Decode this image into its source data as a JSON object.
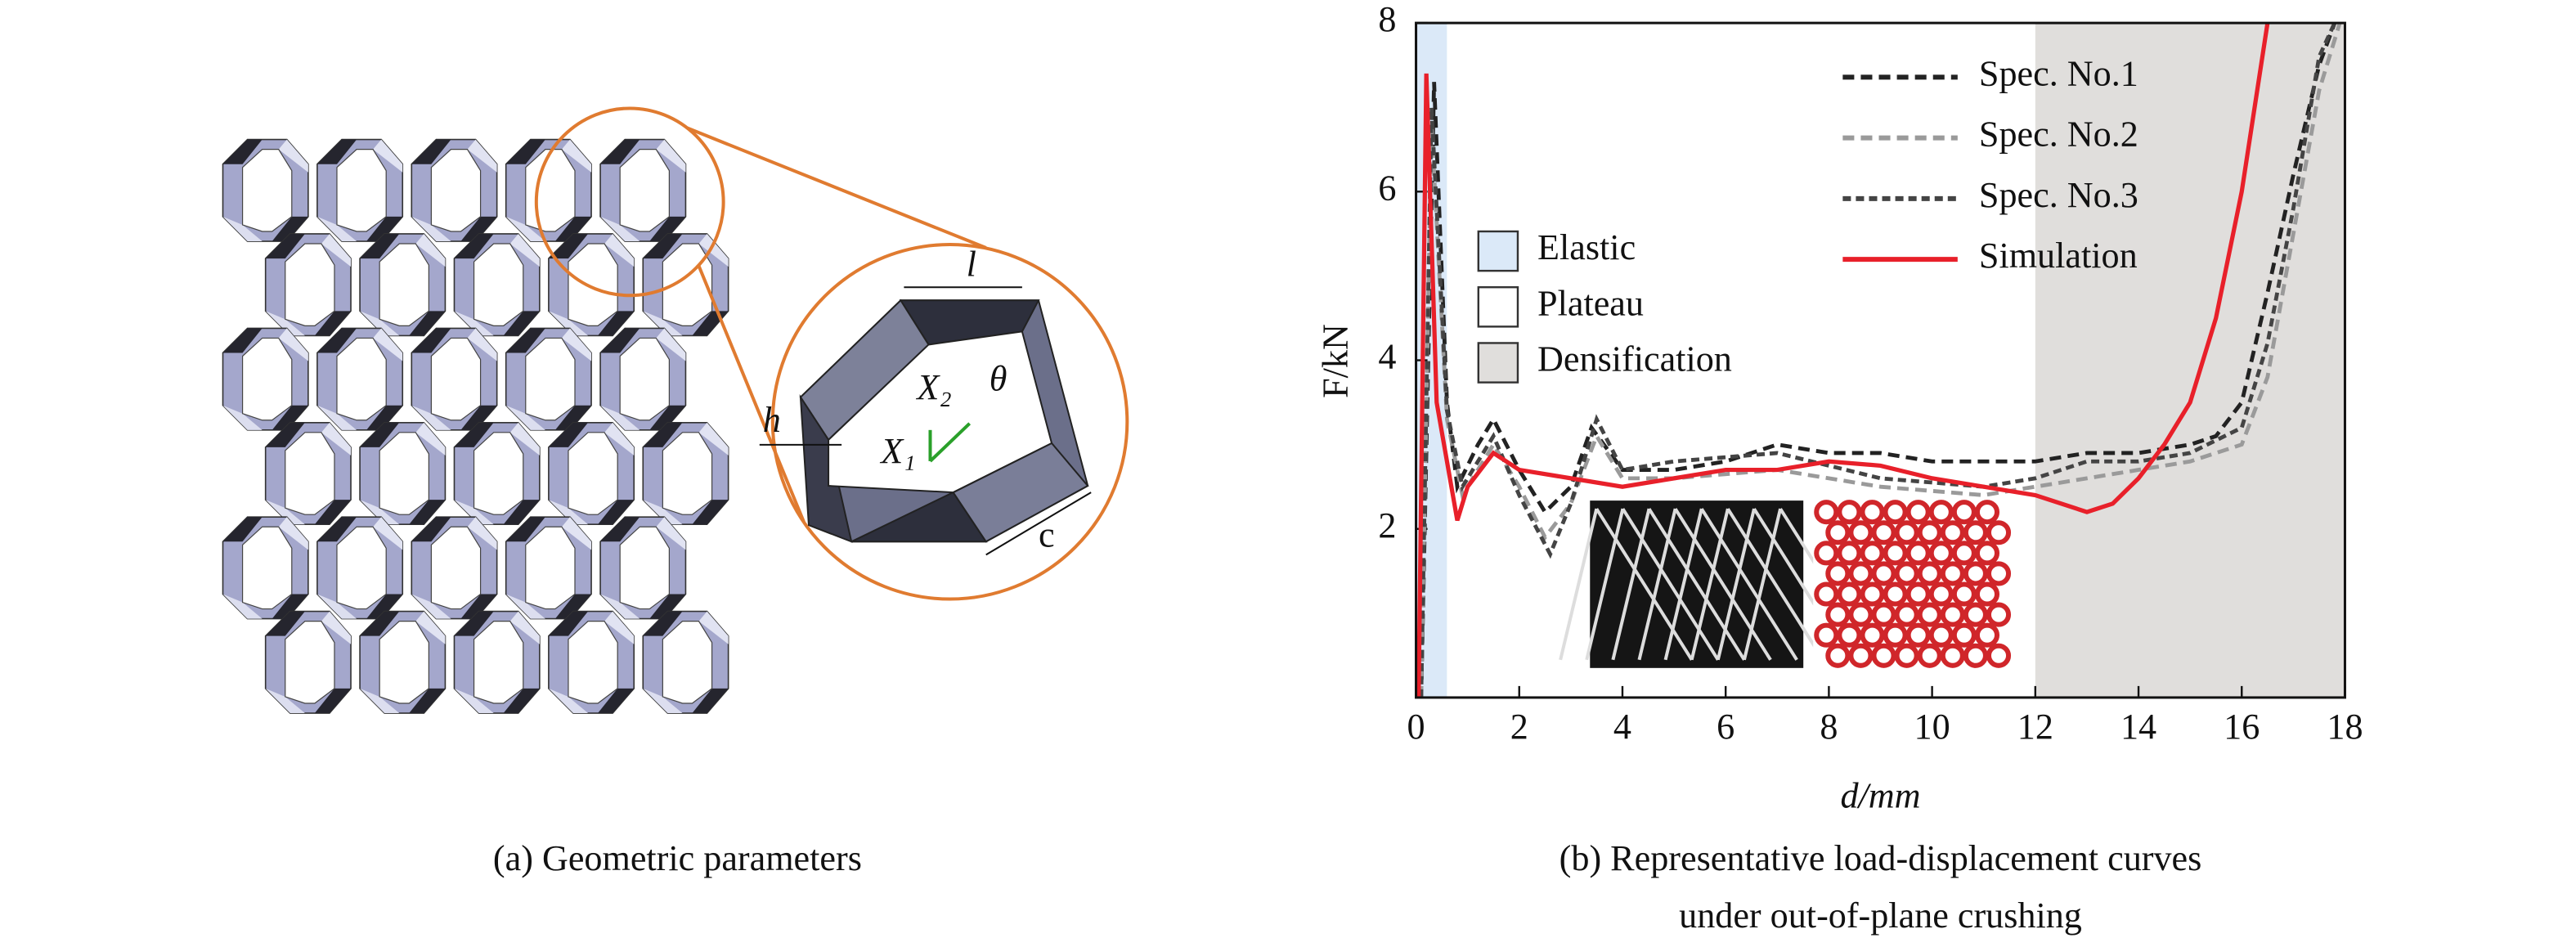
{
  "diagram": {
    "labels": {
      "l": "l",
      "h": "h",
      "theta": "θ",
      "x2": "X₂",
      "x1": "X₁",
      "c": "c"
    },
    "caption": "(a) Geometric parameters"
  },
  "chart_data": {
    "type": "line",
    "xlabel": "d/mm",
    "ylabel": "F/kN",
    "caption": [
      "(b) Representative load-displacement curves",
      "under out-of-plane crushing"
    ],
    "xlim": [
      0,
      18
    ],
    "ylim": [
      0,
      8
    ],
    "xticks": [
      0,
      2,
      4,
      6,
      8,
      10,
      12,
      14,
      16,
      18
    ],
    "yticks": [
      2,
      4,
      6,
      8
    ],
    "regions": [
      {
        "name": "Elastic",
        "range": [
          0,
          0.6
        ],
        "color": "#dbe9f8"
      },
      {
        "name": "Plateau",
        "range": [
          0.6,
          12
        ],
        "color": "#ffffff"
      },
      {
        "name": "Densification",
        "range": [
          12,
          18
        ],
        "color": "#e0dedc"
      }
    ],
    "series": [
      {
        "name": "Spec. No.1",
        "color": "#222222",
        "dash": "7,4",
        "x": [
          0.1,
          0.35,
          0.6,
          0.8,
          1.2,
          1.5,
          2,
          2.5,
          3,
          3.4,
          4,
          5,
          6,
          7,
          8,
          9,
          10,
          11,
          12,
          13,
          14,
          15,
          15.5,
          16,
          16.5,
          17,
          17.5,
          17.8
        ],
        "values": [
          0,
          7.3,
          3.5,
          2.5,
          3.0,
          3.3,
          2.7,
          2.2,
          2.5,
          3.2,
          2.7,
          2.7,
          2.8,
          3.0,
          2.9,
          2.9,
          2.8,
          2.8,
          2.8,
          2.9,
          2.9,
          3.0,
          3.1,
          3.5,
          4.8,
          6.2,
          7.5,
          8
        ]
      },
      {
        "name": "Spec. No.2",
        "color": "#9a9a9a",
        "dash": "7,4",
        "x": [
          0.1,
          0.3,
          0.6,
          0.9,
          1.5,
          2,
          2.5,
          3,
          3.5,
          4,
          5,
          7,
          9,
          11,
          12,
          13,
          14,
          15,
          16,
          16.5,
          17,
          17.5,
          17.9
        ],
        "values": [
          0,
          6.8,
          3.3,
          2.4,
          3.0,
          2.5,
          1.9,
          2.3,
          3.1,
          2.6,
          2.6,
          2.7,
          2.5,
          2.4,
          2.5,
          2.6,
          2.7,
          2.8,
          3.0,
          3.8,
          5.5,
          7.2,
          8
        ]
      },
      {
        "name": "Spec. No.3",
        "color": "#444444",
        "dash": "5,3",
        "x": [
          0.1,
          0.3,
          0.6,
          0.9,
          1.5,
          2,
          2.6,
          3,
          3.5,
          4,
          5,
          7,
          9,
          11,
          12,
          13,
          14,
          15,
          16,
          16.5,
          17,
          17.5,
          17.8
        ],
        "values": [
          0,
          7.0,
          3.4,
          2.5,
          3.1,
          2.4,
          1.7,
          2.3,
          3.3,
          2.7,
          2.8,
          2.9,
          2.6,
          2.5,
          2.6,
          2.8,
          2.8,
          2.9,
          3.2,
          4.2,
          5.8,
          7.6,
          8
        ]
      },
      {
        "name": "Simulation",
        "color": "#e8202a",
        "dash": "",
        "x": [
          0.05,
          0.2,
          0.4,
          0.8,
          1.0,
          1.5,
          2,
          3,
          4,
          5,
          6,
          7,
          8,
          9,
          10,
          11,
          12,
          13,
          13.5,
          14,
          14.5,
          15,
          15.5,
          16,
          16.5
        ],
        "values": [
          0,
          7.4,
          3.5,
          2.1,
          2.5,
          2.9,
          2.7,
          2.6,
          2.5,
          2.6,
          2.7,
          2.7,
          2.8,
          2.75,
          2.6,
          2.5,
          2.4,
          2.2,
          2.3,
          2.6,
          3.0,
          3.5,
          4.5,
          6.0,
          8
        ]
      }
    ]
  }
}
